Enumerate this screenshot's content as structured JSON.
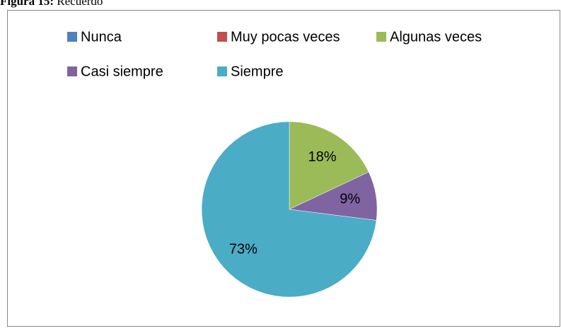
{
  "chart_data": {
    "type": "pie",
    "title": "Figura 15:",
    "subtitle": "Recuerdo",
    "categories": [
      "Nunca",
      "Muy pocas veces",
      "Algunas veces",
      "Casi siempre",
      "Siempre"
    ],
    "values": [
      0,
      0,
      18,
      9,
      73
    ],
    "value_labels": [
      null,
      null,
      "18%",
      "9%",
      "73%"
    ],
    "colors": [
      "#4f81bd",
      "#c0504d",
      "#9bbb59",
      "#8064a2",
      "#4bacc6"
    ],
    "legend": "top"
  }
}
